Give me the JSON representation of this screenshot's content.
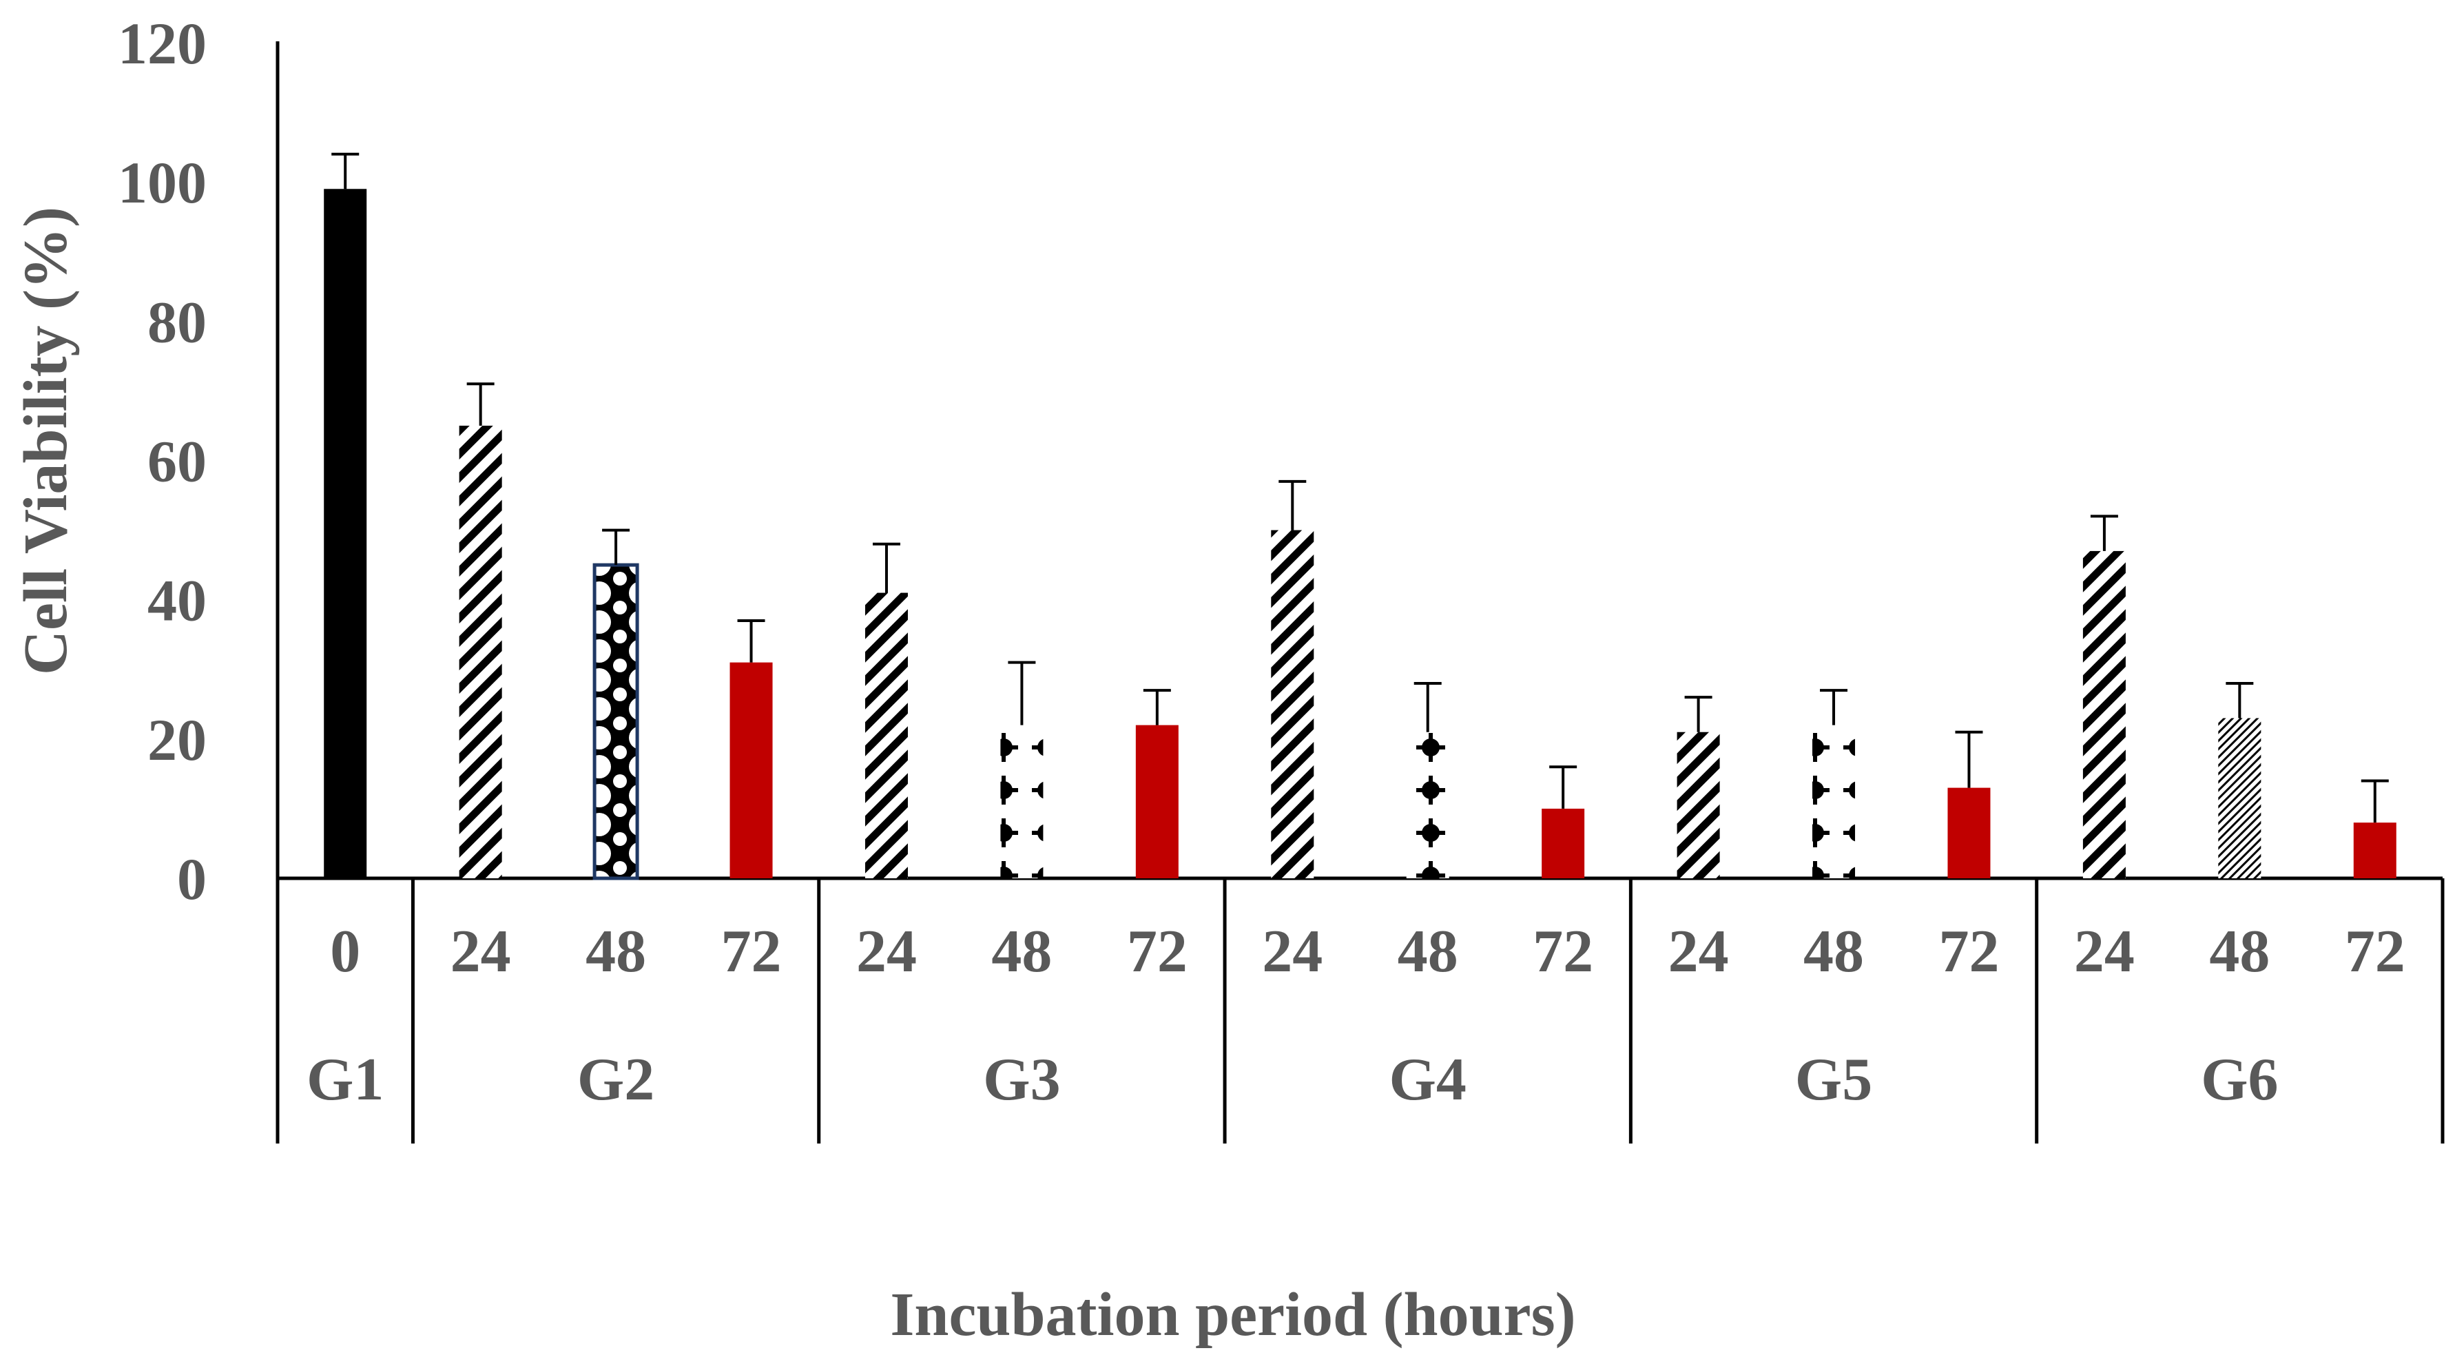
{
  "chart_data": {
    "type": "bar",
    "title": "",
    "xlabel": "Incubation period (hours)",
    "ylabel": "Cell Viability  (%)",
    "ylim": [
      0,
      120
    ],
    "yticks": [
      0,
      20,
      40,
      60,
      80,
      100,
      120
    ],
    "grid": false,
    "legend": "none",
    "groups": [
      {
        "name": "G1",
        "bars": [
          {
            "label": "0",
            "value": 99,
            "error": 5,
            "fill": "solid",
            "color": "#000000"
          }
        ]
      },
      {
        "name": "G2",
        "bars": [
          {
            "label": "24",
            "value": 65,
            "error": 6,
            "fill": "diagonal-stripes",
            "color": "#000000"
          },
          {
            "label": "48",
            "value": 45,
            "error": 5,
            "fill": "dots-outlined",
            "color": "#000000",
            "border": "#1f3864"
          },
          {
            "label": "72",
            "value": 31,
            "error": 6,
            "fill": "solid",
            "color": "#c00000"
          }
        ]
      },
      {
        "name": "G3",
        "bars": [
          {
            "label": "24",
            "value": 41,
            "error": 7,
            "fill": "diagonal-stripes",
            "color": "#000000"
          },
          {
            "label": "48",
            "value": 22,
            "error": 9,
            "fill": "dots",
            "color": "#000000"
          },
          {
            "label": "72",
            "value": 22,
            "error": 5,
            "fill": "solid",
            "color": "#c00000"
          }
        ]
      },
      {
        "name": "G4",
        "bars": [
          {
            "label": "24",
            "value": 50,
            "error": 7,
            "fill": "diagonal-stripes",
            "color": "#000000"
          },
          {
            "label": "48",
            "value": 21,
            "error": 7,
            "fill": "dots",
            "color": "#000000"
          },
          {
            "label": "72",
            "value": 10,
            "error": 6,
            "fill": "solid",
            "color": "#c00000"
          }
        ]
      },
      {
        "name": "G5",
        "bars": [
          {
            "label": "24",
            "value": 21,
            "error": 5,
            "fill": "diagonal-stripes",
            "color": "#000000"
          },
          {
            "label": "48",
            "value": 22,
            "error": 5,
            "fill": "dots",
            "color": "#000000"
          },
          {
            "label": "72",
            "value": 13,
            "error": 8,
            "fill": "solid",
            "color": "#c00000"
          }
        ]
      },
      {
        "name": "G6",
        "bars": [
          {
            "label": "24",
            "value": 47,
            "error": 5,
            "fill": "diagonal-stripes",
            "color": "#000000"
          },
          {
            "label": "48",
            "value": 23,
            "error": 5,
            "fill": "fine-diagonal",
            "color": "#000000"
          },
          {
            "label": "72",
            "value": 8,
            "error": 6,
            "fill": "solid",
            "color": "#c00000"
          }
        ]
      }
    ]
  }
}
